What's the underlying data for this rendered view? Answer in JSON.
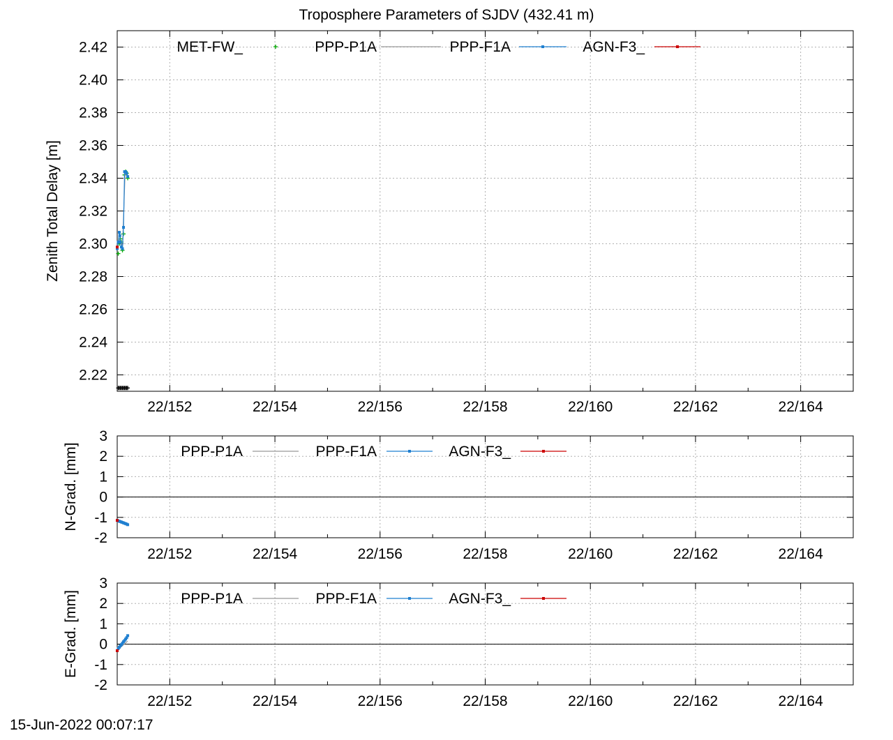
{
  "chart_data": [
    {
      "type": "line",
      "title": "Troposphere Parameters of SJDV (432.41 m)",
      "ylabel": "Zenith Total Delay [m]",
      "xlabel": "",
      "xlim": [
        151.0,
        165.0
      ],
      "ylim": [
        2.21,
        2.43
      ],
      "x_tick_values": [
        152,
        154,
        156,
        158,
        160,
        162,
        164
      ],
      "x_tick_labels": [
        "22/152",
        "22/154",
        "22/156",
        "22/158",
        "22/160",
        "22/162",
        "22/164"
      ],
      "y_tick_values": [
        2.22,
        2.24,
        2.26,
        2.28,
        2.3,
        2.32,
        2.34,
        2.36,
        2.38,
        2.4,
        2.42
      ],
      "y_tick_labels": [
        "2.22",
        "2.24",
        "2.26",
        "2.28",
        "2.30",
        "2.32",
        "2.34",
        "2.36",
        "2.38",
        "2.40",
        "2.42"
      ],
      "grid": true,
      "legend_position": "top",
      "series": [
        {
          "name": "MET-FW_",
          "color": "#00aa00",
          "style": "points",
          "x": [
            151.02,
            151.04,
            151.06,
            151.08,
            151.1,
            151.12,
            151.14,
            151.16,
            151.18,
            151.2
          ],
          "y": [
            2.294,
            2.3,
            2.303,
            2.301,
            2.296,
            2.306,
            2.342,
            2.344,
            2.343,
            2.34
          ]
        },
        {
          "name": "PPP-P1A",
          "color": "#999999",
          "style": "line",
          "x": [
            151.0,
            151.05,
            151.1,
            151.15,
            151.2
          ],
          "y": [
            2.299,
            2.303,
            2.298,
            2.343,
            2.341
          ]
        },
        {
          "name": "PPP-F1A",
          "color": "#1f7fd0",
          "style": "linepoints",
          "x": [
            151.0,
            151.02,
            151.04,
            151.05,
            151.06,
            151.08,
            151.1,
            151.12,
            151.14,
            151.16,
            151.18,
            151.2
          ],
          "y": [
            2.297,
            2.301,
            2.307,
            2.305,
            2.301,
            2.298,
            2.297,
            2.31,
            2.344,
            2.344,
            2.343,
            2.341
          ]
        },
        {
          "name": "AGN-F3_",
          "color": "#cc0000",
          "style": "linepoints",
          "x": [
            151.0
          ],
          "y": [
            2.298
          ]
        },
        {
          "name": "",
          "color": "#000000",
          "style": "points",
          "x": [
            151.02,
            151.04,
            151.06,
            151.08,
            151.1,
            151.12,
            151.14,
            151.16,
            151.18,
            151.2
          ],
          "y": [
            2.212,
            2.212,
            2.212,
            2.212,
            2.212,
            2.212,
            2.212,
            2.212,
            2.212,
            2.212
          ]
        }
      ]
    },
    {
      "type": "line",
      "title": "",
      "ylabel": "N-Grad. [mm]",
      "xlabel": "",
      "xlim": [
        151.0,
        165.0
      ],
      "ylim": [
        -2,
        3
      ],
      "x_tick_values": [
        152,
        154,
        156,
        158,
        160,
        162,
        164
      ],
      "x_tick_labels": [
        "22/152",
        "22/154",
        "22/156",
        "22/158",
        "22/160",
        "22/162",
        "22/164"
      ],
      "y_tick_values": [
        -2,
        -1,
        0,
        1,
        2,
        3
      ],
      "y_tick_labels": [
        "-2",
        "-1",
        "0",
        "1",
        "2",
        "3"
      ],
      "zero_line": true,
      "grid": true,
      "legend_position": "top",
      "series": [
        {
          "name": "PPP-P1A",
          "color": "#999999",
          "style": "line",
          "x": [
            151.0,
            151.2
          ],
          "y": [
            -1.15,
            -1.35
          ]
        },
        {
          "name": "PPP-F1A",
          "color": "#1f7fd0",
          "style": "linepoints",
          "x": [
            151.0,
            151.02,
            151.04,
            151.06,
            151.08,
            151.1,
            151.12,
            151.14,
            151.16,
            151.18,
            151.2
          ],
          "y": [
            -1.15,
            -1.17,
            -1.19,
            -1.21,
            -1.23,
            -1.25,
            -1.27,
            -1.29,
            -1.31,
            -1.33,
            -1.36
          ]
        },
        {
          "name": "AGN-F3_",
          "color": "#cc0000",
          "style": "linepoints",
          "x": [
            151.0
          ],
          "y": [
            -1.15
          ]
        }
      ]
    },
    {
      "type": "line",
      "title": "",
      "ylabel": "E-Grad. [mm]",
      "xlabel": "",
      "xlim": [
        151.0,
        165.0
      ],
      "ylim": [
        -2,
        3
      ],
      "x_tick_values": [
        152,
        154,
        156,
        158,
        160,
        162,
        164
      ],
      "x_tick_labels": [
        "22/152",
        "22/154",
        "22/156",
        "22/158",
        "22/160",
        "22/162",
        "22/164"
      ],
      "y_tick_values": [
        -2,
        -1,
        0,
        1,
        2,
        3
      ],
      "y_tick_labels": [
        "-2",
        "-1",
        "0",
        "1",
        "2",
        "3"
      ],
      "zero_line": true,
      "grid": true,
      "legend_position": "top",
      "series": [
        {
          "name": "PPP-P1A",
          "color": "#999999",
          "style": "line",
          "x": [
            151.0,
            151.2
          ],
          "y": [
            -0.3,
            0.15
          ]
        },
        {
          "name": "PPP-F1A",
          "color": "#1f7fd0",
          "style": "linepoints",
          "x": [
            151.0,
            151.02,
            151.04,
            151.06,
            151.08,
            151.1,
            151.12,
            151.14,
            151.16,
            151.18,
            151.2
          ],
          "y": [
            -0.32,
            -0.22,
            -0.15,
            -0.08,
            -0.02,
            0.05,
            0.12,
            0.18,
            0.25,
            0.32,
            0.42
          ]
        },
        {
          "name": "AGN-F3_",
          "color": "#cc0000",
          "style": "linepoints",
          "x": [
            151.0
          ],
          "y": [
            -0.32
          ]
        }
      ]
    }
  ],
  "footer": {
    "timestamp": "15-Jun-2022 00:07:17"
  }
}
